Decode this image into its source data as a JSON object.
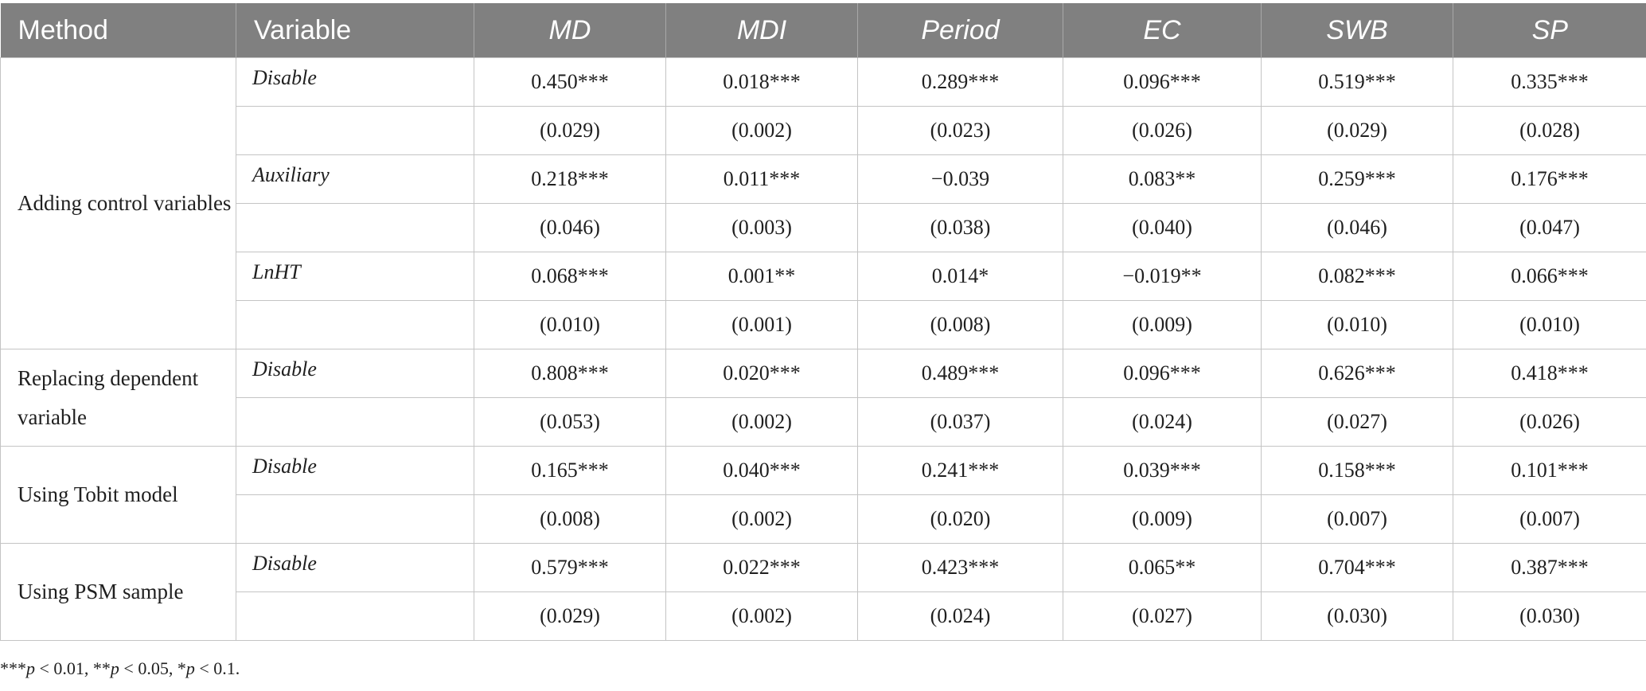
{
  "columns": [
    "Method",
    "Variable",
    "MD",
    "MDI",
    "Period",
    "EC",
    "SWB",
    "SP"
  ],
  "groups": [
    {
      "method": "Adding control variables",
      "rows": [
        {
          "variable": "Disable",
          "coefs": [
            "0.450***",
            "0.018***",
            "0.289***",
            "0.096***",
            "0.519***",
            "0.335***"
          ],
          "ses": [
            "(0.029)",
            "(0.002)",
            "(0.023)",
            "(0.026)",
            "(0.029)",
            "(0.028)"
          ]
        },
        {
          "variable": "Auxiliary",
          "coefs": [
            "0.218***",
            "0.011***",
            "−0.039",
            "0.083**",
            "0.259***",
            "0.176***"
          ],
          "ses": [
            "(0.046)",
            "(0.003)",
            "(0.038)",
            "(0.040)",
            "(0.046)",
            "(0.047)"
          ]
        },
        {
          "variable": "LnHT",
          "coefs": [
            "0.068***",
            "0.001**",
            "0.014*",
            "−0.019**",
            "0.082***",
            "0.066***"
          ],
          "ses": [
            "(0.010)",
            "(0.001)",
            "(0.008)",
            "(0.009)",
            "(0.010)",
            "(0.010)"
          ]
        }
      ]
    },
    {
      "method": "Replacing dependent variable",
      "rows": [
        {
          "variable": "Disable",
          "coefs": [
            "0.808***",
            "0.020***",
            "0.489***",
            "0.096***",
            "0.626***",
            "0.418***"
          ],
          "ses": [
            "(0.053)",
            "(0.002)",
            "(0.037)",
            "(0.024)",
            "(0.027)",
            "(0.026)"
          ]
        }
      ]
    },
    {
      "method": "Using Tobit model",
      "rows": [
        {
          "variable": "Disable",
          "coefs": [
            "0.165***",
            "0.040***",
            "0.241***",
            "0.039***",
            "0.158***",
            "0.101***"
          ],
          "ses": [
            "(0.008)",
            "(0.002)",
            "(0.020)",
            "(0.009)",
            "(0.007)",
            "(0.007)"
          ]
        }
      ]
    },
    {
      "method": "Using PSM sample",
      "rows": [
        {
          "variable": "Disable",
          "coefs": [
            "0.579***",
            "0.022***",
            "0.423***",
            "0.065**",
            "0.704***",
            "0.387***"
          ],
          "ses": [
            "(0.029)",
            "(0.002)",
            "(0.024)",
            "(0.027)",
            "(0.030)",
            "(0.030)"
          ]
        }
      ]
    }
  ],
  "footnote": [
    {
      "stars": "***",
      "p": "p",
      "rest": " < 0.01, "
    },
    {
      "stars": "**",
      "p": "p",
      "rest": " < 0.05, "
    },
    {
      "stars": "*",
      "p": "p",
      "rest": " < 0.1."
    }
  ]
}
